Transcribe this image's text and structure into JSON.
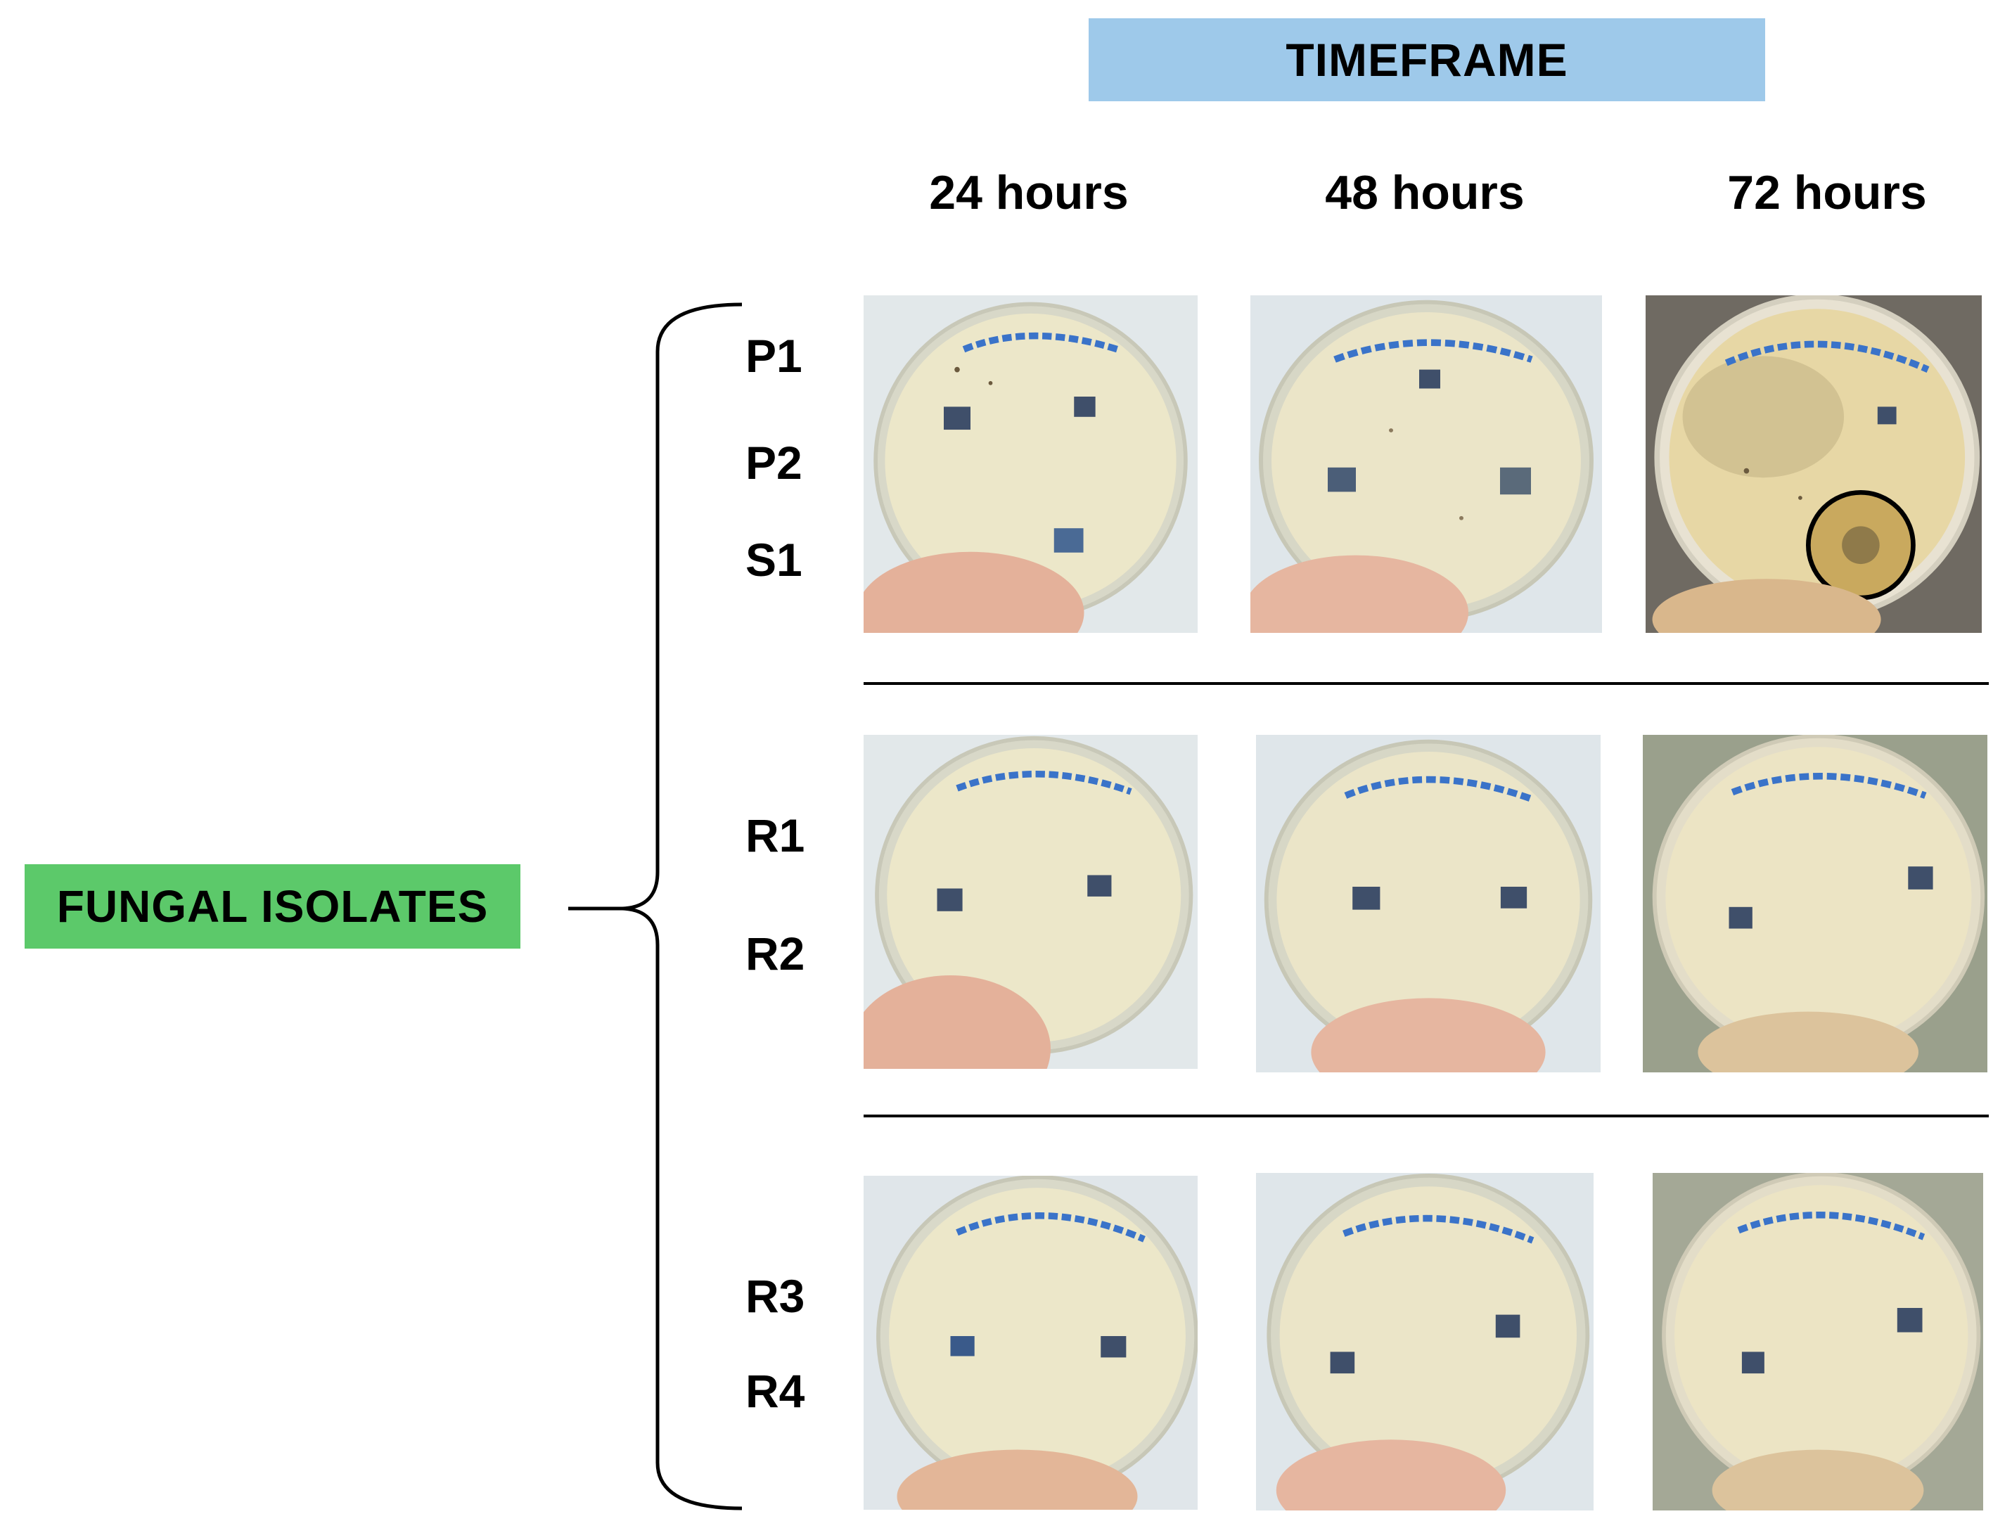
{
  "header": {
    "timeframe": "TIMEFRAME"
  },
  "timepoints": [
    "24 hours",
    "48 hours",
    "72 hours"
  ],
  "side_label": "FUNGAL ISOLATES",
  "groups": [
    {
      "labels": [
        "P1",
        "P2",
        "S1"
      ]
    },
    {
      "labels": [
        "R1",
        "R2"
      ]
    },
    {
      "labels": [
        "R3",
        "R4"
      ]
    }
  ],
  "colors": {
    "timeframe_bg": "#9ec9ea",
    "isolates_bg": "#5cc96a",
    "agar": "#ece6c8",
    "marker_ink": "#3a73c9"
  }
}
